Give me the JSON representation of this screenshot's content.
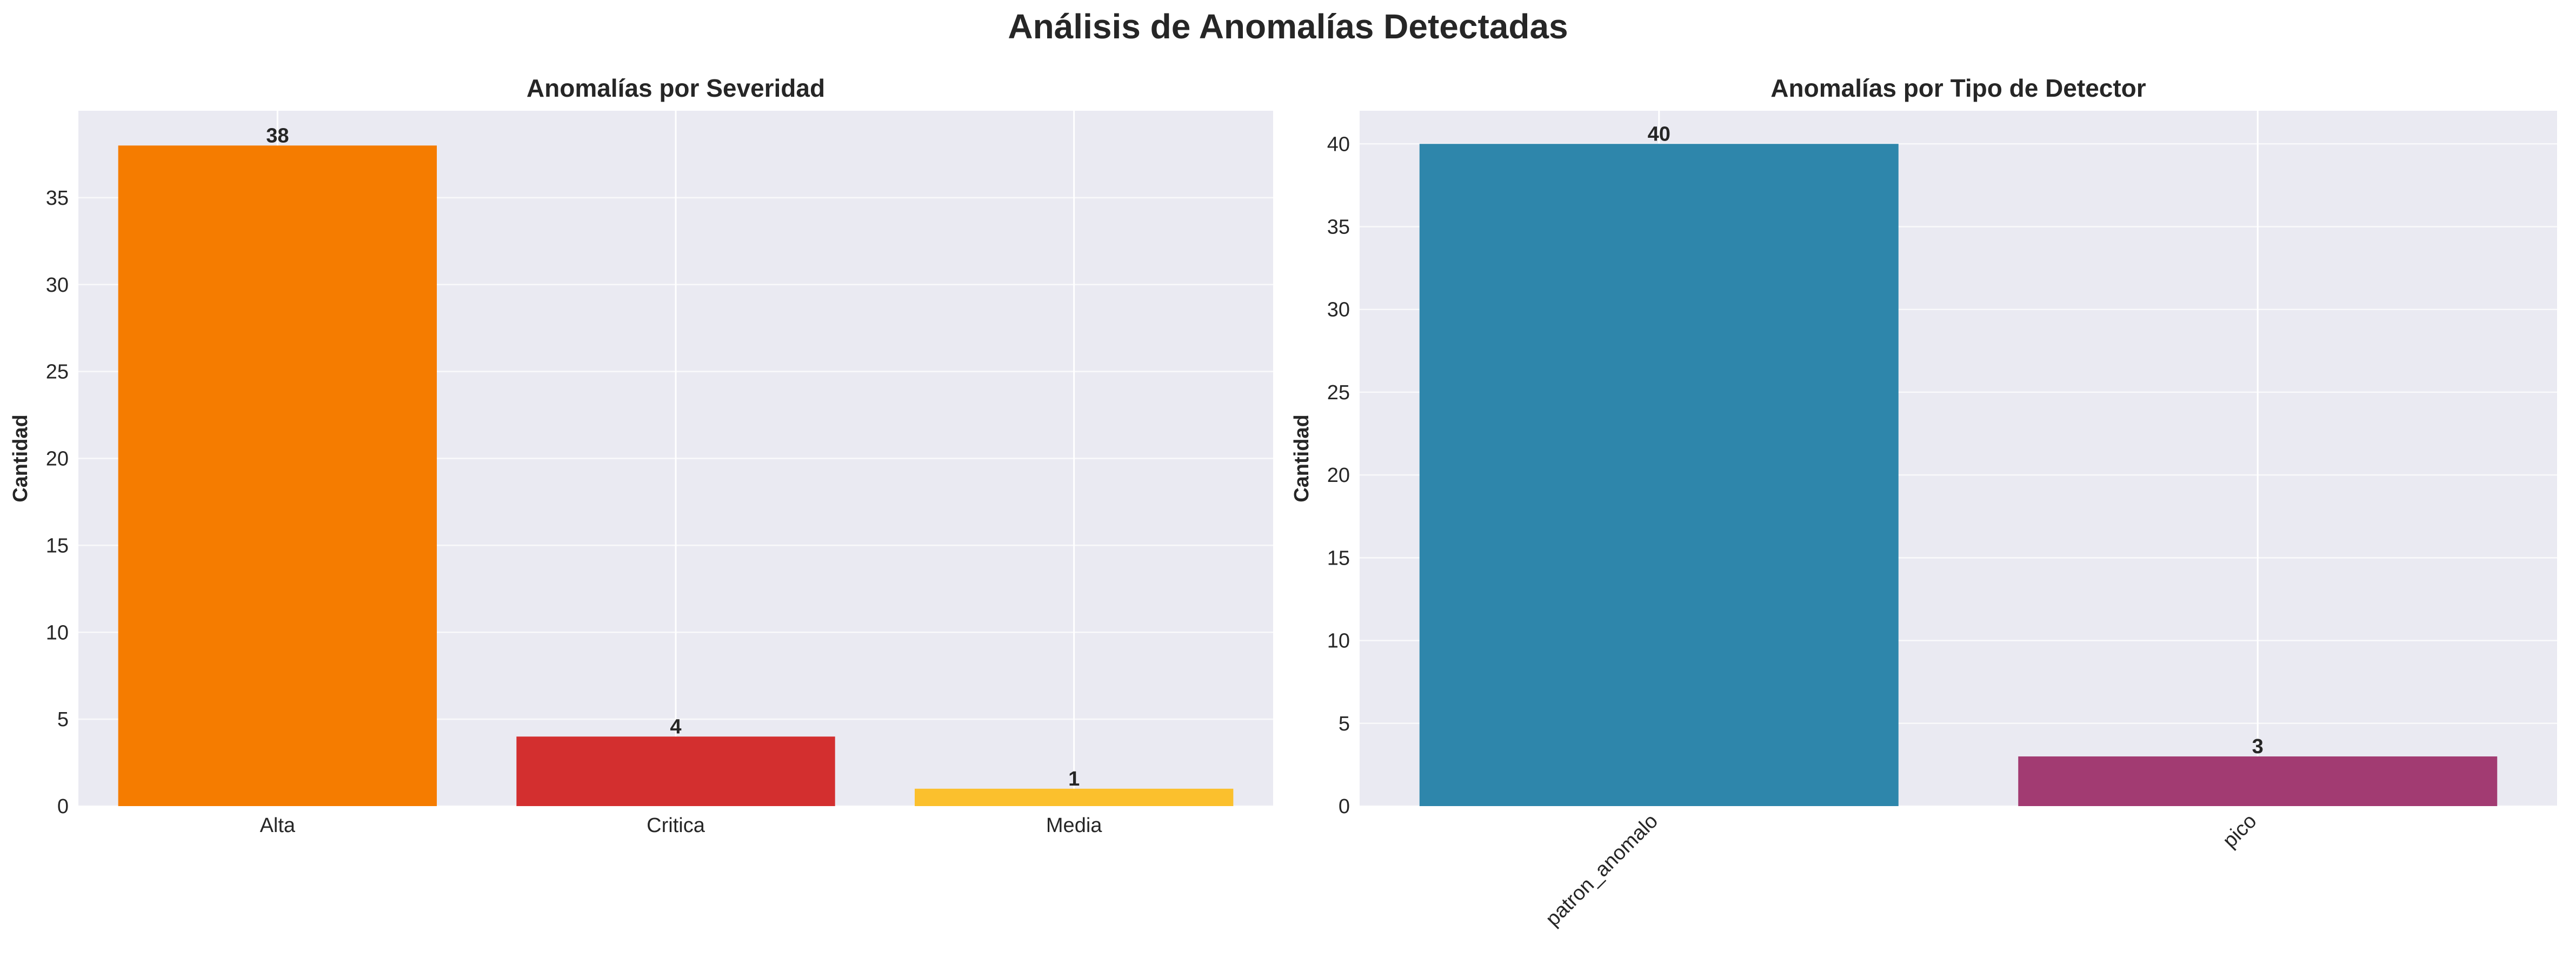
{
  "figure": {
    "title": "Análisis de Anomalías Detectadas"
  },
  "chart_data": [
    {
      "type": "bar",
      "title": "Anomalías por Severidad",
      "xlabel": "",
      "ylabel": "Cantidad",
      "categories": [
        "Alta",
        "Critica",
        "Media"
      ],
      "values": [
        38,
        4,
        1
      ],
      "value_labels": [
        "38",
        "4",
        "1"
      ],
      "colors": [
        "#F57C00",
        "#D32F2F",
        "#FBC02D"
      ],
      "ylim": [
        0,
        40
      ],
      "yticks": [
        0,
        5,
        10,
        15,
        20,
        25,
        30,
        35
      ],
      "ytick_labels": [
        "0",
        "5",
        "10",
        "15",
        "20",
        "25",
        "30",
        "35"
      ],
      "grid": true,
      "background": "#EAEAF2",
      "xtick_rotation": 0
    },
    {
      "type": "bar",
      "title": "Anomalías por Tipo de Detector",
      "xlabel": "",
      "ylabel": "Cantidad",
      "categories": [
        "patron_anomalo",
        "pico"
      ],
      "values": [
        40,
        3
      ],
      "value_labels": [
        "40",
        "3"
      ],
      "colors": [
        "#2E86AB",
        "#A23B72"
      ],
      "ylim": [
        0,
        42
      ],
      "yticks": [
        0,
        5,
        10,
        15,
        20,
        25,
        30,
        35,
        40
      ],
      "ytick_labels": [
        "0",
        "5",
        "10",
        "15",
        "20",
        "25",
        "30",
        "35",
        "40"
      ],
      "grid": true,
      "background": "#EAEAF2",
      "xtick_rotation": -45
    }
  ]
}
